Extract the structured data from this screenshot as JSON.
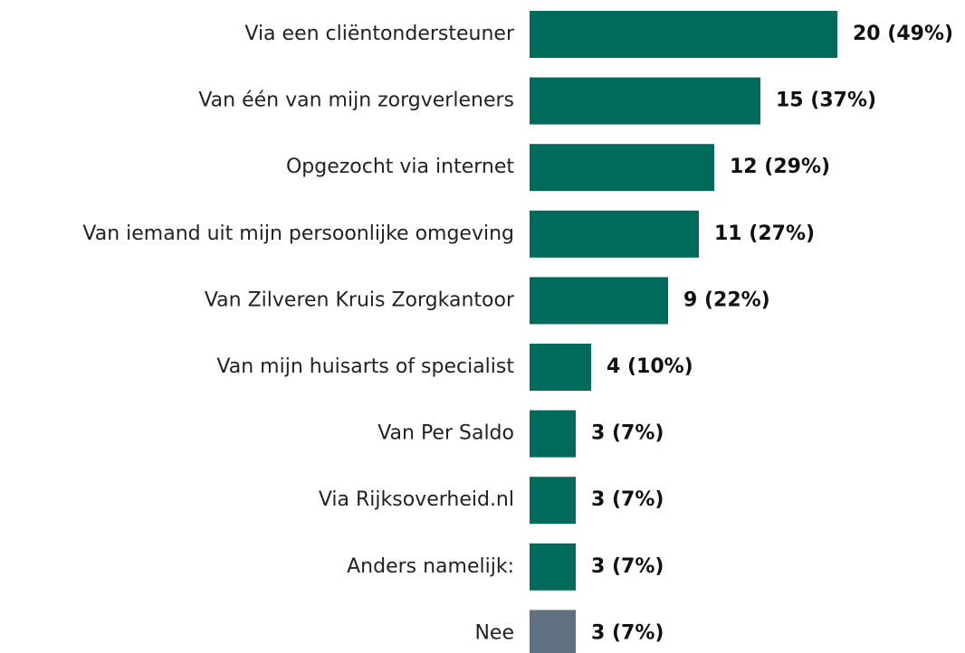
{
  "chart_data": {
    "type": "bar",
    "orientation": "horizontal",
    "categories": [
      "Via een cliëntondersteuner",
      "Van één van mijn zorgverleners",
      "Opgezocht via internet",
      "Van iemand uit mijn persoonlijke omgeving",
      "Van Zilveren Kruis Zorgkantoor",
      "Van mijn huisarts of specialist",
      "Van Per Saldo",
      "Via Rijksoverheid.nl",
      "Anders namelijk:",
      "Nee"
    ],
    "values": [
      20,
      15,
      12,
      11,
      9,
      4,
      3,
      3,
      3,
      3
    ],
    "value_labels": [
      "20 (49%)",
      "15 (37%)",
      "12 (29%)",
      "11 (27%)",
      "9 (22%)",
      "4 (10%)",
      "3 (7%)",
      "3 (7%)",
      "3 (7%)",
      "3 (7%)"
    ],
    "colors": [
      "#006b5a",
      "#006b5a",
      "#006b5a",
      "#006b5a",
      "#006b5a",
      "#006b5a",
      "#006b5a",
      "#006b5a",
      "#006b5a",
      "#5f7282"
    ]
  }
}
